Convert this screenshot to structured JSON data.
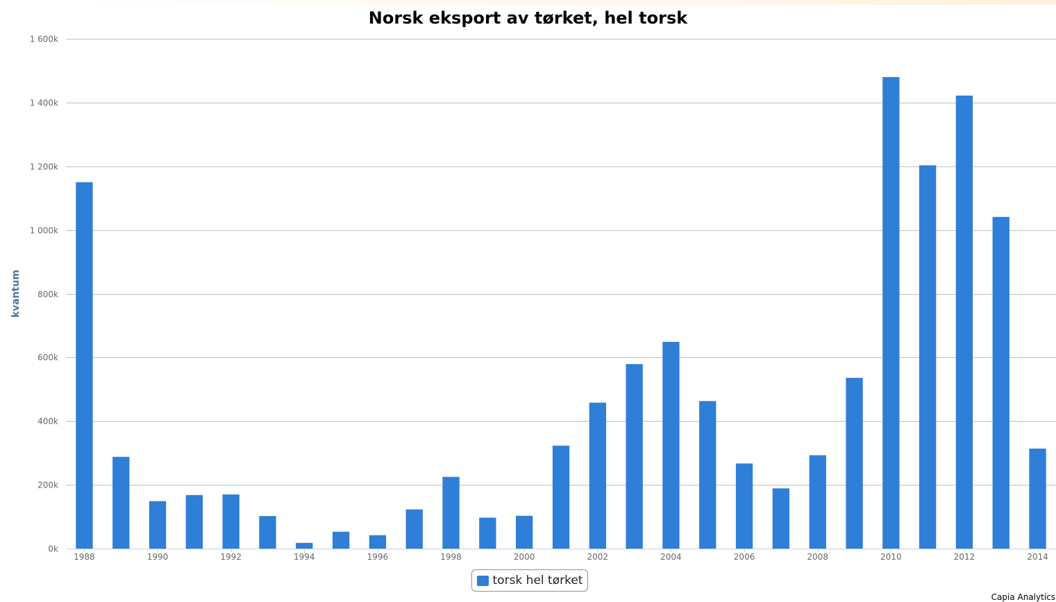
{
  "chart_data": {
    "type": "bar",
    "title": "Norsk eksport av tørket, hel torsk",
    "xlabel": "",
    "ylabel": "kvantum",
    "ylim": [
      0,
      1600000
    ],
    "yticks": [
      0,
      200000,
      400000,
      600000,
      800000,
      1000000,
      1200000,
      1400000,
      1600000
    ],
    "ytick_labels": [
      "0k",
      "200k",
      "400k",
      "600k",
      "800k",
      "1 000k",
      "1 200k",
      "1 400k",
      "1 600k"
    ],
    "grid": true,
    "legend_position": "bottom-center",
    "categories": [
      "1988",
      "1989",
      "1990",
      "1991",
      "1992",
      "1993",
      "1994",
      "1995",
      "1996",
      "1997",
      "1998",
      "1999",
      "2000",
      "2001",
      "2002",
      "2003",
      "2004",
      "2005",
      "2006",
      "2007",
      "2008",
      "2009",
      "2010",
      "2011",
      "2012",
      "2013",
      "2014"
    ],
    "xtick_labels": [
      "1988",
      "1990",
      "1992",
      "1994",
      "1996",
      "1998",
      "2000",
      "2002",
      "2004",
      "2006",
      "2008",
      "2010",
      "2012",
      "2014"
    ],
    "series": [
      {
        "name": "torsk hel tørket",
        "color": "#2f7ed8",
        "values": [
          1150000,
          288000,
          149000,
          168000,
          170000,
          102000,
          18000,
          53000,
          42000,
          123000,
          225000,
          97000,
          103000,
          323000,
          458000,
          579000,
          649000,
          463000,
          267000,
          189000,
          293000,
          536000,
          1480000,
          1203000,
          1422000,
          1041000,
          314000
        ]
      }
    ]
  },
  "credits": "Capia Analytics"
}
